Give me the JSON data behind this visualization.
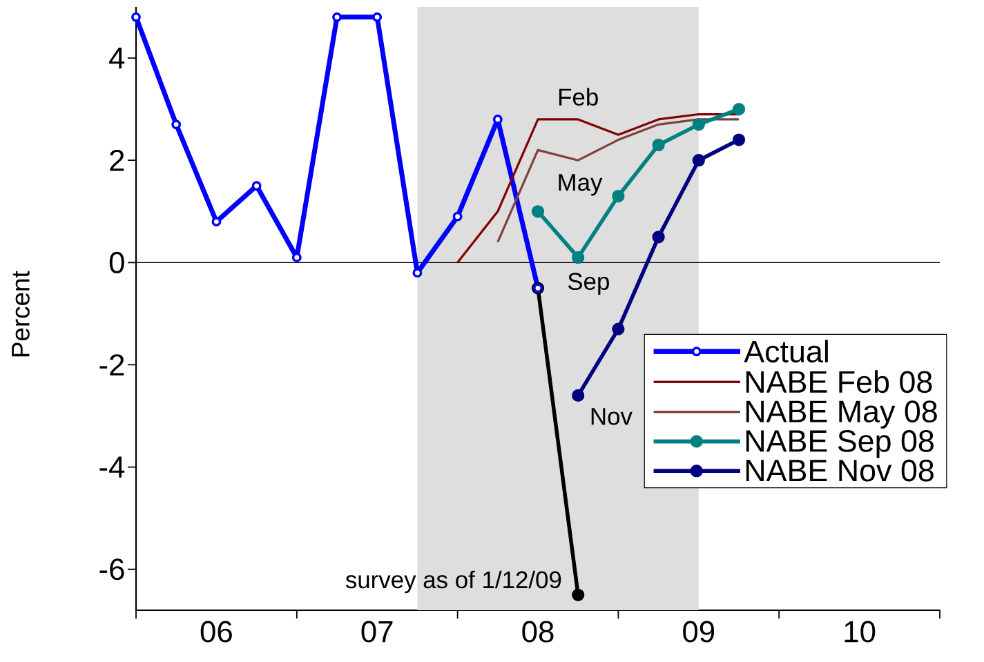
{
  "chart_data": {
    "type": "line",
    "ylabel": "Percent",
    "xlim": [
      5.5,
      10.5
    ],
    "ylim": [
      -6.8,
      5
    ],
    "xticks": [
      {
        "value": 5.5,
        "label": null
      },
      {
        "value": 6.5,
        "label": null
      },
      {
        "value": 7.5,
        "label": null
      },
      {
        "value": 8.5,
        "label": null
      },
      {
        "value": 9.5,
        "label": null
      },
      {
        "value": 10.5,
        "label": null
      },
      {
        "value": 6,
        "label": "06"
      },
      {
        "value": 7,
        "label": "07"
      },
      {
        "value": 8,
        "label": "08"
      },
      {
        "value": 9,
        "label": "09"
      },
      {
        "value": 10,
        "label": "10"
      }
    ],
    "yticks": [
      -6,
      -4,
      -2,
      0,
      2,
      4
    ],
    "series": [
      {
        "name": "Actual",
        "color": "#0000ff",
        "marker": "circle",
        "x": [
          5.5,
          5.75,
          6.0,
          6.25,
          6.5,
          6.75,
          7.0,
          7.25,
          7.5,
          7.75,
          8.0
        ],
        "values": [
          4.8,
          2.7,
          0.8,
          1.5,
          0.1,
          4.8,
          4.8,
          -0.2,
          0.9,
          2.8,
          -0.5
        ]
      },
      {
        "name": "NABE Feb 08",
        "color": "#800000",
        "marker": "none",
        "x": [
          7.5,
          7.75,
          8.0,
          8.25,
          8.5,
          8.75,
          9.0,
          9.25
        ],
        "values": [
          0.0,
          1.0,
          2.8,
          2.8,
          2.5,
          2.8,
          2.9,
          2.9
        ]
      },
      {
        "name": "NABE May 08",
        "color": "#804040",
        "marker": "none",
        "x": [
          7.75,
          8.0,
          8.25,
          8.5,
          8.75,
          9.0,
          9.25
        ],
        "values": [
          0.4,
          2.2,
          2.0,
          2.4,
          2.7,
          2.8,
          2.8
        ]
      },
      {
        "name": "NABE Sep 08",
        "color": "#008080",
        "marker": "circle",
        "x": [
          8.0,
          8.25,
          8.5,
          8.75,
          9.0,
          9.25
        ],
        "values": [
          1.0,
          0.1,
          1.3,
          2.3,
          2.7,
          3.0
        ]
      },
      {
        "name": "NABE Nov 08",
        "color": "#000080",
        "marker": "circle",
        "x": [
          8.25,
          8.5,
          8.75,
          9.0,
          9.25
        ],
        "values": [
          -2.6,
          -1.3,
          0.5,
          2.0,
          2.4
        ]
      },
      {
        "color": "#000000",
        "marker": "circle",
        "x": [
          8.0,
          8.25
        ],
        "values": [
          -0.5,
          -6.5
        ]
      }
    ],
    "ref_lines": [
      {
        "axis": "y",
        "value": 0,
        "color": "#000000"
      }
    ],
    "bands": [
      {
        "axis": "x",
        "from": 7.25,
        "to": 9.0,
        "color": "#dedede"
      }
    ],
    "annotations": [
      "Feb",
      "May",
      "Sep",
      "Nov",
      "survey as of 1/12/09"
    ],
    "legend": "right",
    "grid": false
  }
}
